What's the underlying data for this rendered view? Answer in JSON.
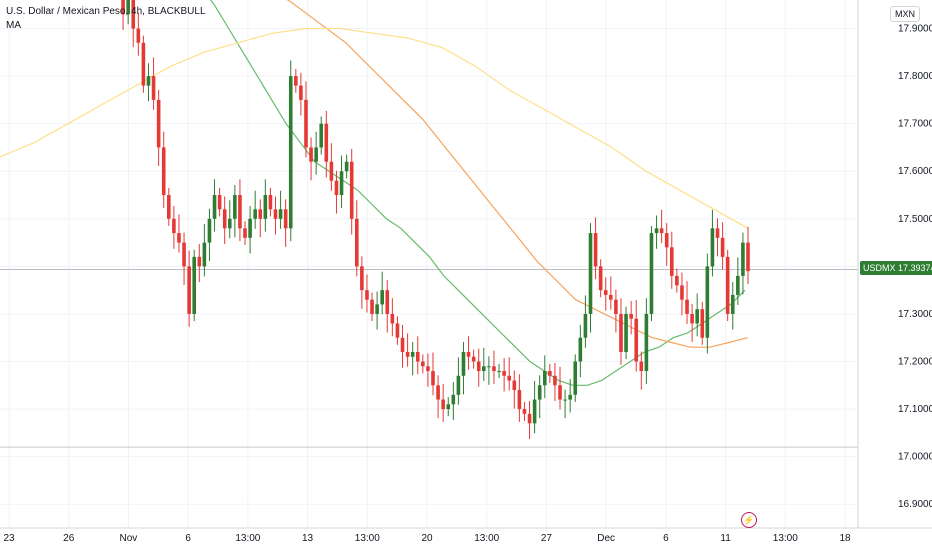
{
  "header": {
    "title": "U.S. Dollar / Mexican Peso, 4h, BLACKBULL",
    "indicator": "MA"
  },
  "price_axis": {
    "currency": "MXN",
    "ticks": [
      "17.90000",
      "17.80000",
      "17.70000",
      "17.60000",
      "17.50000",
      "17.40000",
      "17.30000",
      "17.20000",
      "17.10000",
      "17.00000",
      "16.90000"
    ]
  },
  "time_axis": {
    "ticks": [
      "23",
      "26",
      "Nov",
      "6",
      "13:00",
      "13",
      "13:00",
      "20",
      "13:00",
      "27",
      "Dec",
      "6",
      "11",
      "13:00",
      "18"
    ]
  },
  "current": {
    "symbol": "USDMXN",
    "price": "17.39374"
  },
  "colors": {
    "bull": "#2e7d32",
    "bear": "#e53935",
    "ma_fast": "#66bb6a",
    "ma_mid": "#f5a45d",
    "ma_slow": "#fde08a",
    "grid": "#f0f3fa"
  },
  "chart_data": {
    "type": "candlestick",
    "title": "U.S. Dollar / Mexican Peso, 4h, BLACKBULL",
    "ylim": [
      16.85,
      17.96
    ],
    "y_ticks": [
      16.9,
      17.0,
      17.1,
      17.2,
      17.3,
      17.4,
      17.5,
      17.6,
      17.7,
      17.8,
      17.9
    ],
    "x_ticks": [
      "23",
      "26",
      "Nov",
      "6",
      "13:00",
      "13",
      "13:00",
      "20",
      "13:00",
      "27",
      "Dec",
      "6",
      "11",
      "13:00",
      "18"
    ],
    "last_price": 17.39374,
    "horizontal_levels": [
      17.39374,
      17.02
    ],
    "closes": [
      17.98,
      17.93,
      17.96,
      17.9,
      17.87,
      17.78,
      17.8,
      17.75,
      17.65,
      17.55,
      17.5,
      17.47,
      17.45,
      17.4,
      17.3,
      17.42,
      17.4,
      17.45,
      17.5,
      17.55,
      17.52,
      17.48,
      17.5,
      17.55,
      17.48,
      17.46,
      17.5,
      17.52,
      17.5,
      17.55,
      17.52,
      17.5,
      17.52,
      17.48,
      17.8,
      17.78,
      17.75,
      17.65,
      17.62,
      17.65,
      17.7,
      17.62,
      17.58,
      17.55,
      17.6,
      17.62,
      17.5,
      17.4,
      17.35,
      17.33,
      17.3,
      17.32,
      17.35,
      17.3,
      17.28,
      17.25,
      17.22,
      17.21,
      17.22,
      17.2,
      17.19,
      17.18,
      17.15,
      17.12,
      17.1,
      17.11,
      17.13,
      17.17,
      17.22,
      17.21,
      17.2,
      17.18,
      17.19,
      17.19,
      17.18,
      17.18,
      17.17,
      17.16,
      17.14,
      17.1,
      17.09,
      17.07,
      17.12,
      17.15,
      17.18,
      17.17,
      17.15,
      17.12,
      17.12,
      17.13,
      17.2,
      17.25,
      17.3,
      17.47,
      17.4,
      17.35,
      17.34,
      17.33,
      17.3,
      17.22,
      17.3,
      17.29,
      17.2,
      17.18,
      17.3,
      17.47,
      17.48,
      17.47,
      17.44,
      17.38,
      17.36,
      17.33,
      17.3,
      17.28,
      17.31,
      17.25,
      17.4,
      17.48,
      17.46,
      17.42,
      17.3,
      17.34,
      17.38,
      17.45,
      17.39
    ],
    "series": [
      {
        "name": "MA fast",
        "values": [
          17.99,
          17.95,
          17.9,
          17.85,
          17.8,
          17.75,
          17.7,
          17.66,
          17.62,
          17.6,
          17.58,
          17.56,
          17.53,
          17.5,
          17.48,
          17.45,
          17.42,
          17.38,
          17.35,
          17.32,
          17.29,
          17.26,
          17.23,
          17.2,
          17.18,
          17.16,
          17.15,
          17.15,
          17.16,
          17.18,
          17.2,
          17.22,
          17.23,
          17.25,
          17.26,
          17.28,
          17.3,
          17.32,
          17.35
        ]
      },
      {
        "name": "MA mid",
        "values": [
          17.99,
          17.97,
          17.96,
          17.93,
          17.9,
          17.87,
          17.83,
          17.79,
          17.75,
          17.71,
          17.66,
          17.61,
          17.56,
          17.51,
          17.46,
          17.41,
          17.37,
          17.33,
          17.31,
          17.29,
          17.27,
          17.25,
          17.24,
          17.23,
          17.23,
          17.24,
          17.25
        ]
      },
      {
        "name": "MA slow",
        "values": [
          17.63,
          17.66,
          17.7,
          17.74,
          17.78,
          17.82,
          17.85,
          17.87,
          17.89,
          17.9,
          17.9,
          17.89,
          17.88,
          17.86,
          17.82,
          17.77,
          17.73,
          17.69,
          17.65,
          17.6,
          17.56,
          17.52,
          17.48
        ]
      }
    ]
  }
}
